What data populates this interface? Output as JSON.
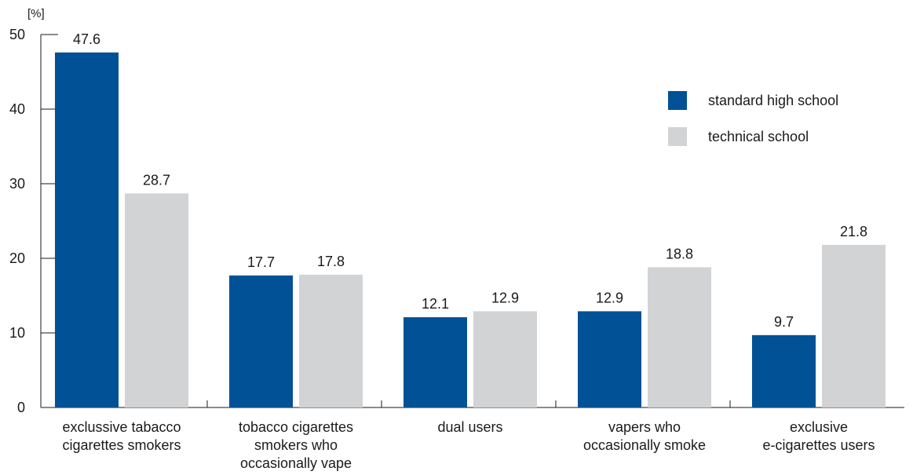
{
  "chart_data": {
    "type": "bar",
    "unit_label": "[%]",
    "categories": [
      [
        "exclussive tabacco",
        "cigarettes smokers"
      ],
      [
        "tobacco cigarettes",
        "smokers who",
        "occasionally vape"
      ],
      [
        "dual users"
      ],
      [
        "vapers who",
        "occasionally smoke"
      ],
      [
        "exclusive",
        "e-cigarettes users"
      ]
    ],
    "series": [
      {
        "name": "standard high school",
        "color": "#005195",
        "values": [
          47.6,
          17.7,
          12.1,
          12.9,
          9.7
        ]
      },
      {
        "name": "technical school",
        "color": "#d2d3d5",
        "values": [
          28.7,
          17.8,
          12.9,
          18.8,
          21.8
        ]
      }
    ],
    "yticks": [
      0,
      10,
      20,
      30,
      40,
      50
    ],
    "ylim": [
      0,
      50
    ],
    "grid": false,
    "legend_position": "top-right"
  }
}
